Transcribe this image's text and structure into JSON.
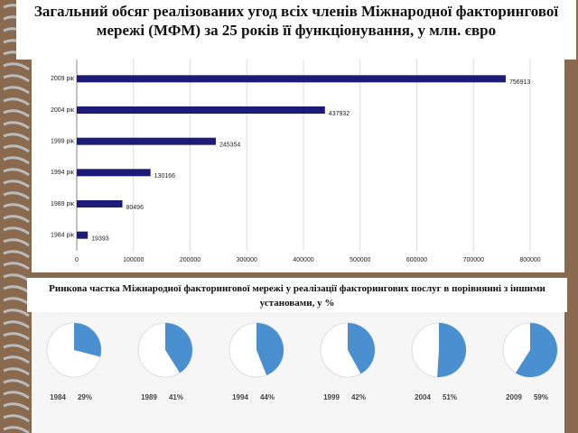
{
  "chart_data": [
    {
      "type": "bar",
      "orientation": "horizontal",
      "title": "Загальний обсяг реалізованих угод всіх членів Міжнародної факторингової мережі (МФМ) за 25 років її функціонування, у млн. євро",
      "categories": [
        "2009 рік",
        "2004 рік",
        "1999 рік",
        "1994 рік",
        "1989 рік",
        "1984 рік"
      ],
      "values": [
        756913,
        437932,
        245354,
        130166,
        80496,
        19393
      ],
      "color": "#1c1c78",
      "xlim": [
        0,
        800000
      ],
      "xticks": [
        0,
        100000,
        200000,
        300000,
        400000,
        500000,
        600000,
        700000,
        800000
      ],
      "grid": true
    },
    {
      "type": "pie",
      "title": "Ринкова частка Міжнародної факторингової мережі у реалізації факторингових послуг в порівнянні з іншими установами,  у %",
      "categories": [
        "1984",
        "1989",
        "1994",
        "1999",
        "2004",
        "2009"
      ],
      "values": [
        29,
        41,
        44,
        42,
        51,
        59
      ],
      "value_labels": [
        "29%",
        "41%",
        "44%",
        "42%",
        "51%",
        "59%"
      ],
      "color": "#4a8fd0"
    }
  ]
}
